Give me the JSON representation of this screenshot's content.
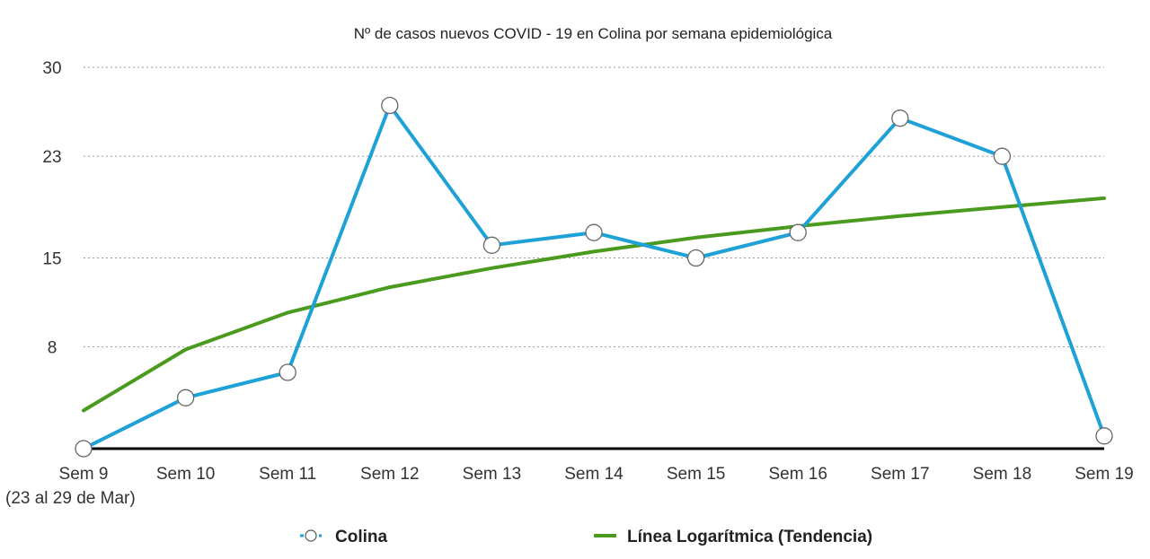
{
  "chart_data": {
    "type": "line",
    "title": "Nº de casos nuevos COVID - 19 en Colina por semana epidemiológica",
    "categories": [
      "Sem 9",
      "Sem 10",
      "Sem 11",
      "Sem 12",
      "Sem 13",
      "Sem 14",
      "Sem 15",
      "Sem 16",
      "Sem 17",
      "Sem 18",
      "Sem 19"
    ],
    "first_category_note": "(23 al 29 de Mar)",
    "y_ticks": [
      30,
      23,
      15,
      8
    ],
    "ylim": [
      0,
      30
    ],
    "grid": true,
    "legend_position": "bottom",
    "series": [
      {
        "name": "Colina",
        "kind": "line-markers",
        "color": "#1ea1d6",
        "values": [
          0,
          4,
          6,
          27,
          16,
          17,
          15,
          17,
          26,
          23,
          1
        ]
      },
      {
        "name": "Línea Logarítmica (Tendencia)",
        "kind": "trend",
        "color": "#4a9a1e",
        "values": [
          3,
          7.8,
          10.7,
          12.7,
          14.2,
          15.5,
          16.6,
          17.5,
          18.3,
          19.0,
          19.7
        ]
      }
    ]
  }
}
